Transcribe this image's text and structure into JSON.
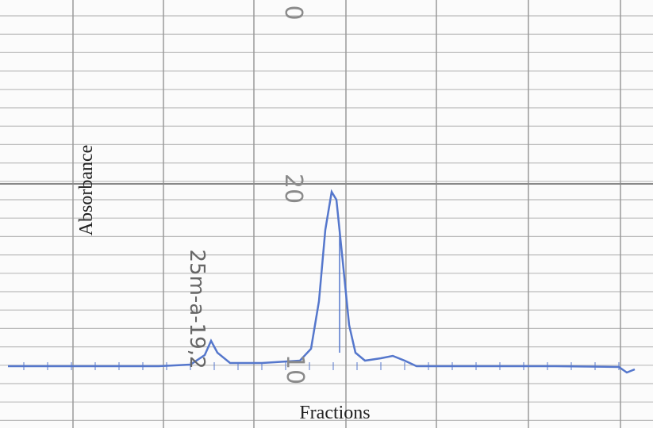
{
  "labels": {
    "scale_top": "0",
    "scale_middle": "20",
    "scale_bottom": "10",
    "y_axis": "Absorbance",
    "x_axis": "Fractions",
    "sample": "25m-a-19,2"
  }
}
